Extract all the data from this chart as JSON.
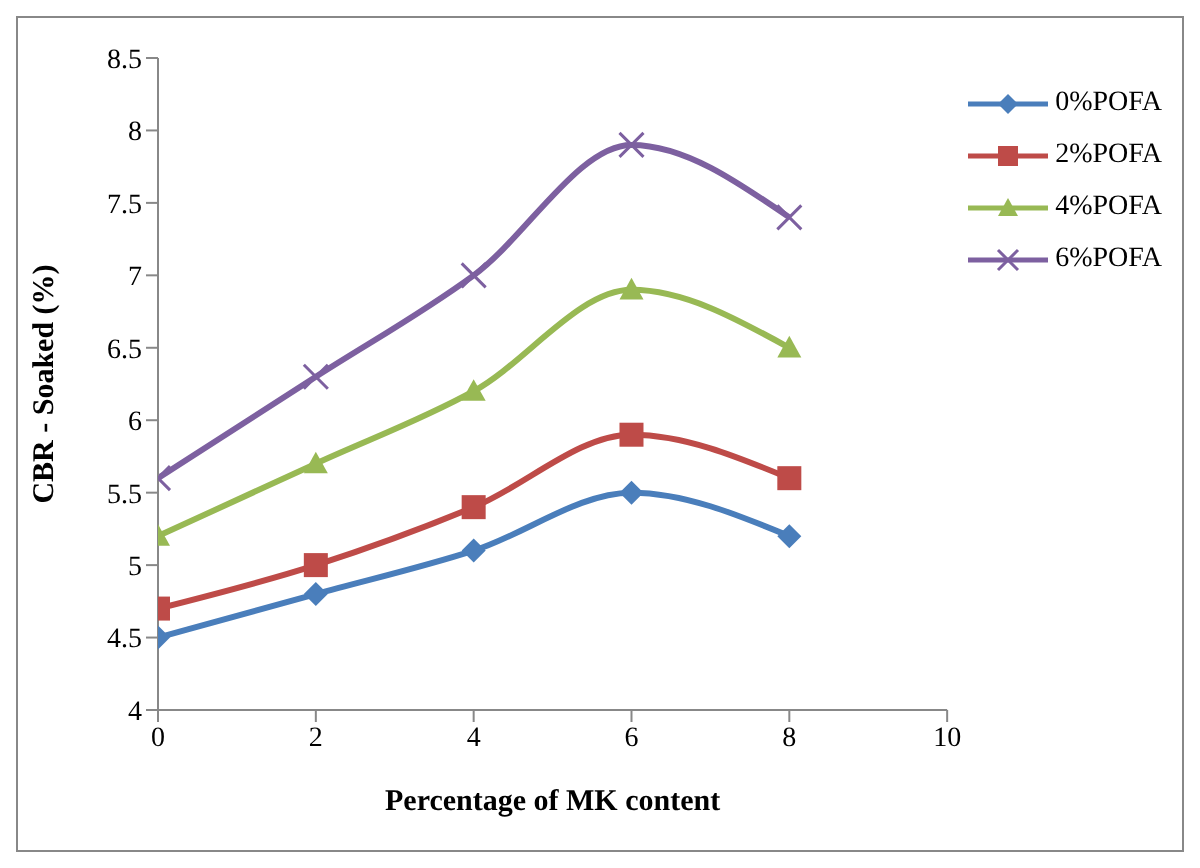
{
  "chart_data": {
    "type": "line",
    "xlabel": "Percentage of MK content",
    "ylabel": "CBR - Soaked (%)",
    "x": [
      0,
      2,
      4,
      6,
      8
    ],
    "xlim": [
      0,
      10
    ],
    "xticks": [
      0,
      2,
      4,
      6,
      8,
      10
    ],
    "ylim": [
      4,
      8.5
    ],
    "yticks": [
      4,
      4.5,
      5,
      5.5,
      6,
      6.5,
      7,
      7.5,
      8,
      8.5
    ],
    "grid": false,
    "legend": "right",
    "series": [
      {
        "name": "0%POFA",
        "color": "#4a7ebb",
        "marker": "diamond",
        "values": [
          4.5,
          4.8,
          5.1,
          5.5,
          5.2
        ]
      },
      {
        "name": "2%POFA",
        "color": "#be4b48",
        "marker": "square",
        "values": [
          4.7,
          5.0,
          5.4,
          5.9,
          5.6
        ]
      },
      {
        "name": "4%POFA",
        "color": "#98b954",
        "marker": "triangle",
        "values": [
          5.2,
          5.7,
          6.2,
          6.9,
          6.5
        ]
      },
      {
        "name": "6%POFA",
        "color": "#7d60a0",
        "marker": "cross",
        "values": [
          5.6,
          6.3,
          7.0,
          7.9,
          7.4
        ]
      }
    ]
  }
}
